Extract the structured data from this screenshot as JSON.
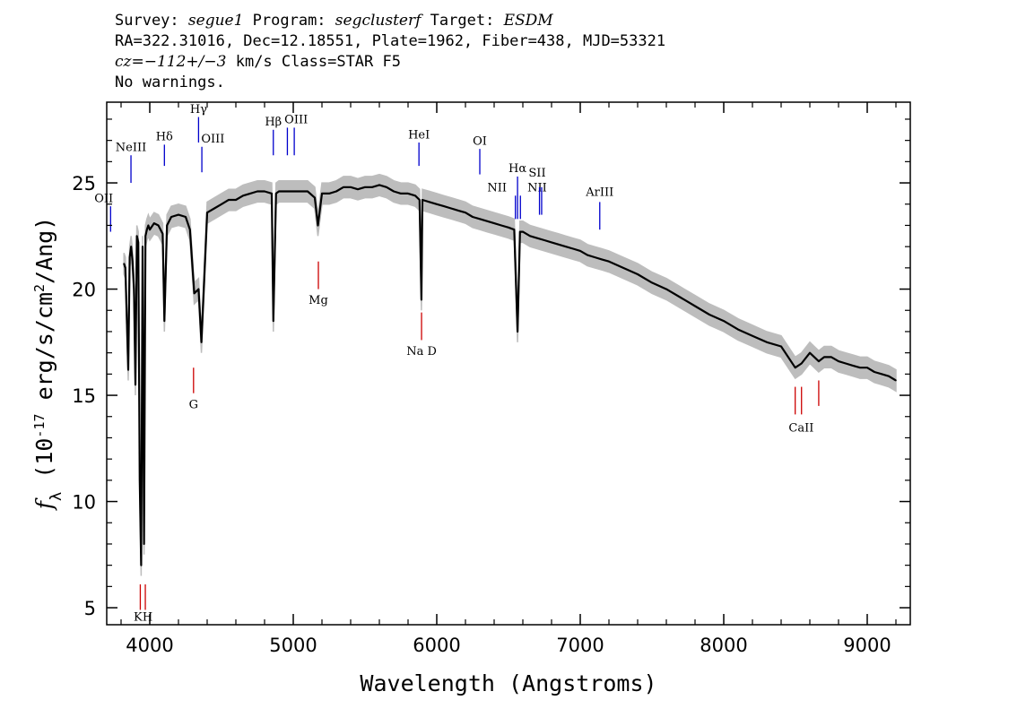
{
  "header": {
    "survey_label": "Survey:",
    "survey": "segue1",
    "program_label": "Program:",
    "program": "segclusterf",
    "target_label": "Target:",
    "target": "ESDM",
    "line2": "RA=322.31016, Dec=12.18551, Plate=1962, Fiber=438, MJD=53321",
    "cz_label": "cz=",
    "cz_value": "−112+/−3",
    "cz_unit": "km/s",
    "class_text": "Class=STAR F5",
    "warnings": "No warnings."
  },
  "colors": {
    "flux_line": "#000000",
    "error_band": "#bdbdbd",
    "emission_lines": "#0000cc",
    "absorption_lines": "#cc0000"
  },
  "chart_data": {
    "type": "line",
    "xlabel": "Wavelength (Angstroms)",
    "ylabel": "f_λ (10^-17 erg/s/cm^2/Ang)",
    "xlim": [
      3700,
      9300
    ],
    "ylim": [
      4.2,
      28.8
    ],
    "xticks": [
      4000,
      5000,
      6000,
      7000,
      8000,
      9000
    ],
    "yticks": [
      5,
      10,
      15,
      20,
      25
    ],
    "grid": false,
    "series": [
      {
        "role": "flux",
        "color": "#000000",
        "x": [
          3820,
          3830,
          3850,
          3860,
          3870,
          3880,
          3890,
          3900,
          3910,
          3920,
          3930,
          3940,
          3950,
          3960,
          3970,
          3980,
          3990,
          4000,
          4030,
          4060,
          4090,
          4102,
          4120,
          4150,
          4200,
          4250,
          4280,
          4310,
          4340,
          4360,
          4400,
          4450,
          4500,
          4550,
          4600,
          4650,
          4700,
          4750,
          4800,
          4850,
          4861,
          4880,
          4900,
          4950,
          5000,
          5050,
          5100,
          5150,
          5172,
          5200,
          5250,
          5300,
          5350,
          5400,
          5450,
          5500,
          5550,
          5600,
          5650,
          5700,
          5750,
          5800,
          5850,
          5880,
          5893,
          5900,
          5950,
          6000,
          6050,
          6100,
          6150,
          6200,
          6250,
          6300,
          6350,
          6400,
          6450,
          6500,
          6540,
          6563,
          6580,
          6600,
          6650,
          6700,
          6750,
          6800,
          6850,
          6900,
          6950,
          7000,
          7050,
          7100,
          7150,
          7200,
          7300,
          7400,
          7500,
          7600,
          7700,
          7800,
          7900,
          8000,
          8100,
          8200,
          8300,
          8400,
          8498,
          8542,
          8600,
          8662,
          8700,
          8750,
          8800,
          8850,
          8900,
          8950,
          9000,
          9050,
          9100,
          9150,
          9200
        ],
        "y": [
          21.2,
          21.0,
          16.2,
          21.5,
          22.0,
          21.3,
          20.0,
          15.5,
          22.5,
          22.2,
          11.0,
          7.0,
          22.0,
          8.0,
          22.5,
          22.8,
          23.0,
          22.8,
          23.1,
          23.0,
          22.6,
          18.5,
          23.0,
          23.4,
          23.5,
          23.4,
          22.8,
          19.8,
          20.0,
          17.5,
          23.6,
          23.8,
          24.0,
          24.2,
          24.2,
          24.4,
          24.5,
          24.6,
          24.6,
          24.5,
          18.5,
          24.5,
          24.6,
          24.6,
          24.6,
          24.6,
          24.6,
          24.3,
          23.0,
          24.5,
          24.5,
          24.6,
          24.8,
          24.8,
          24.7,
          24.8,
          24.8,
          24.9,
          24.8,
          24.6,
          24.5,
          24.5,
          24.4,
          24.2,
          19.5,
          24.2,
          24.1,
          24.0,
          23.9,
          23.8,
          23.7,
          23.6,
          23.4,
          23.3,
          23.2,
          23.1,
          23.0,
          22.9,
          22.8,
          18.0,
          22.7,
          22.7,
          22.5,
          22.4,
          22.3,
          22.2,
          22.1,
          22.0,
          21.9,
          21.8,
          21.6,
          21.5,
          21.4,
          21.3,
          21.0,
          20.7,
          20.3,
          20.0,
          19.6,
          19.2,
          18.8,
          18.5,
          18.1,
          17.8,
          17.5,
          17.3,
          16.3,
          16.5,
          17.0,
          16.6,
          16.8,
          16.8,
          16.6,
          16.5,
          16.4,
          16.3,
          16.3,
          16.1,
          16.0,
          15.9,
          15.7
        ]
      }
    ],
    "error_band_halfwidth": 0.5,
    "line_markers": {
      "emission": [
        {
          "label": "OII",
          "x": 3727,
          "y0": 22.7,
          "y1": 23.9,
          "lx": 3745,
          "ly": 24.1,
          "anchor": "end"
        },
        {
          "label": "NeIII",
          "x": 3869,
          "y0": 25.0,
          "y1": 26.3,
          "lx": 3869,
          "ly": 26.5,
          "anchor": "middle"
        },
        {
          "label": "Hδ",
          "x": 4102,
          "y0": 25.8,
          "y1": 26.8,
          "lx": 4102,
          "ly": 27.0,
          "anchor": "middle"
        },
        {
          "label": "Hγ",
          "x": 4340,
          "y0": 26.9,
          "y1": 28.1,
          "lx": 4340,
          "ly": 28.3,
          "anchor": "middle"
        },
        {
          "label": "OIII",
          "x": 4363,
          "y0": 25.5,
          "y1": 26.7,
          "lx": 4440,
          "ly": 26.9,
          "anchor": "middle"
        },
        {
          "label": "Hβ",
          "x": 4861,
          "y0": 26.3,
          "y1": 27.5,
          "lx": 4861,
          "ly": 27.7,
          "anchor": "middle"
        },
        {
          "label": "OIII",
          "x": 4959,
          "y0": 26.3,
          "y1": 27.6,
          "lx": 5020,
          "ly": 27.8,
          "anchor": "middle"
        },
        {
          "label": "OIII",
          "x": 5007,
          "y0": 26.3,
          "y1": 27.6,
          "lx": null,
          "ly": null,
          "anchor": "middle"
        },
        {
          "label": "HeI",
          "x": 5876,
          "y0": 25.8,
          "y1": 26.9,
          "lx": 5876,
          "ly": 27.1,
          "anchor": "middle"
        },
        {
          "label": "OI",
          "x": 6300,
          "y0": 25.4,
          "y1": 26.6,
          "lx": 6300,
          "ly": 26.8,
          "anchor": "middle"
        },
        {
          "label": "NII",
          "x": 6548,
          "y0": 23.3,
          "y1": 24.4,
          "lx": 6420,
          "ly": 24.6,
          "anchor": "middle"
        },
        {
          "label": "Hα",
          "x": 6563,
          "y0": 23.3,
          "y1": 25.3,
          "lx": 6563,
          "ly": 25.5,
          "anchor": "middle"
        },
        {
          "label": "NII",
          "x": 6583,
          "y0": 23.3,
          "y1": 24.4,
          "lx": 6700,
          "ly": 24.6,
          "anchor": "middle"
        },
        {
          "label": "SII",
          "x": 6716,
          "y0": 23.5,
          "y1": 24.8,
          "lx": 6700,
          "ly": 25.3,
          "anchor": "middle"
        },
        {
          "label": "SII",
          "x": 6731,
          "y0": 23.5,
          "y1": 24.8,
          "lx": null,
          "ly": null,
          "anchor": "middle"
        },
        {
          "label": "ArIII",
          "x": 7136,
          "y0": 22.8,
          "y1": 24.1,
          "lx": 7136,
          "ly": 24.4,
          "anchor": "middle"
        }
      ],
      "absorption": [
        {
          "label": "K",
          "x": 3934,
          "y0": 4.9,
          "y1": 6.1,
          "lx": 3918,
          "ly": 4.4,
          "anchor": "middle"
        },
        {
          "label": "H",
          "x": 3969,
          "y0": 4.9,
          "y1": 6.1,
          "lx": 3985,
          "ly": 4.4,
          "anchor": "middle"
        },
        {
          "label": "G",
          "x": 4305,
          "y0": 15.1,
          "y1": 16.3,
          "lx": 4305,
          "ly": 14.4,
          "anchor": "middle"
        },
        {
          "label": "Mg",
          "x": 5175,
          "y0": 20.0,
          "y1": 21.3,
          "lx": 5175,
          "ly": 19.3,
          "anchor": "middle"
        },
        {
          "label": "Na D",
          "x": 5894,
          "y0": 17.6,
          "y1": 18.9,
          "lx": 5894,
          "ly": 16.9,
          "anchor": "middle"
        },
        {
          "label": "CaII",
          "x": 8498,
          "y0": 14.1,
          "y1": 15.4,
          "lx": 8540,
          "ly": 13.3,
          "anchor": "middle"
        },
        {
          "label": "CaII",
          "x": 8542,
          "y0": 14.1,
          "y1": 15.4,
          "lx": null,
          "ly": null,
          "anchor": "middle"
        },
        {
          "label": "CaII",
          "x": 8662,
          "y0": 14.5,
          "y1": 15.7,
          "lx": null,
          "ly": null,
          "anchor": "middle"
        }
      ]
    }
  }
}
